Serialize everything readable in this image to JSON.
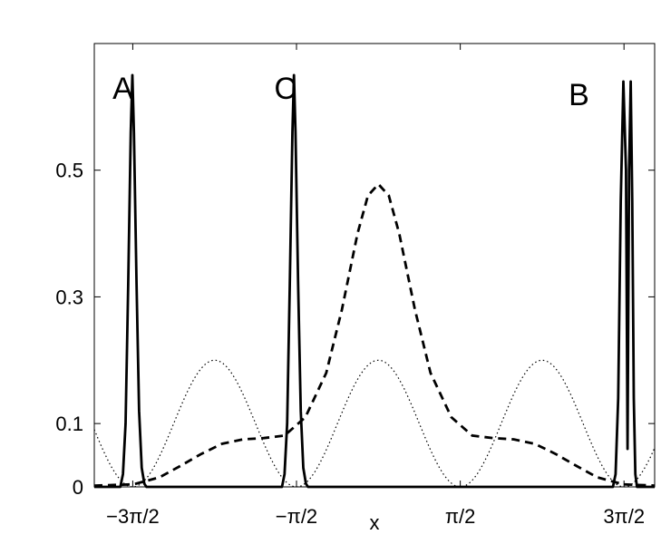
{
  "chart_data": {
    "type": "line",
    "title": "",
    "xlabel": "x",
    "ylabel": "",
    "xlim": [
      -5.45,
      5.3
    ],
    "ylim": [
      0,
      0.7
    ],
    "grid": false,
    "legend": "none",
    "x_ticks": [
      {
        "value": -4.712,
        "label": "−3π/2"
      },
      {
        "value": -1.571,
        "label": "−π/2"
      },
      {
        "value": 1.571,
        "label": "π/2"
      },
      {
        "value": 4.712,
        "label": "3π/2"
      }
    ],
    "y_ticks": [
      {
        "value": 0,
        "label": "0"
      },
      {
        "value": 0.1,
        "label": "0.1"
      },
      {
        "value": 0.3,
        "label": "0.3"
      },
      {
        "value": 0.5,
        "label": "0.5"
      }
    ],
    "annotations": [
      {
        "text": "A",
        "x": -5.1,
        "y": 0.63
      },
      {
        "text": "C",
        "x": -2.0,
        "y": 0.63
      },
      {
        "text": "B",
        "x": 3.65,
        "y": 0.62
      }
    ],
    "series": [
      {
        "style": "solid",
        "color": "#000000",
        "x": [
          -5.45,
          -4.95,
          -4.9,
          -4.85,
          -4.8,
          -4.75,
          -4.72,
          -4.69,
          -4.64,
          -4.59,
          -4.54,
          -4.49,
          -4.45,
          -1.85,
          -1.8,
          -1.75,
          -1.7,
          -1.65,
          -1.62,
          -1.59,
          -1.54,
          -1.49,
          -1.44,
          -1.39,
          -1.35,
          4.5,
          4.55,
          4.6,
          4.65,
          4.7,
          4.75,
          4.78,
          4.81,
          4.84,
          4.87,
          4.9,
          4.93,
          4.96,
          5.0,
          5.05,
          5.1,
          5.15,
          5.3
        ],
        "y": [
          0,
          0,
          0.02,
          0.1,
          0.32,
          0.56,
          0.65,
          0.56,
          0.32,
          0.12,
          0.03,
          0.005,
          0,
          0,
          0.02,
          0.1,
          0.32,
          0.56,
          0.65,
          0.56,
          0.32,
          0.12,
          0.03,
          0.005,
          0,
          0,
          0.02,
          0.14,
          0.45,
          0.64,
          0.5,
          0.06,
          0.5,
          0.64,
          0.45,
          0.14,
          0.02,
          0,
          0,
          0,
          0,
          0,
          0
        ]
      },
      {
        "style": "dashed",
        "color": "#000000",
        "x": [
          -5.45,
          -4.7,
          -4.2,
          -3.8,
          -3.4,
          -3.0,
          -2.6,
          -2.2,
          -1.8,
          -1.4,
          -1.0,
          -0.7,
          -0.4,
          -0.2,
          0.0,
          0.2,
          0.4,
          0.7,
          1.0,
          1.4,
          1.8,
          2.2,
          2.6,
          3.0,
          3.4,
          3.8,
          4.2,
          4.7,
          5.3
        ],
        "y": [
          0.002,
          0.004,
          0.015,
          0.033,
          0.052,
          0.068,
          0.075,
          0.077,
          0.081,
          0.11,
          0.18,
          0.28,
          0.4,
          0.46,
          0.478,
          0.46,
          0.4,
          0.28,
          0.18,
          0.11,
          0.081,
          0.077,
          0.075,
          0.068,
          0.052,
          0.033,
          0.015,
          0.004,
          0.002
        ]
      },
      {
        "style": "dotted",
        "color": "#000000",
        "formula": "0.2*cos(x)^2",
        "x_range": [
          -5.45,
          5.3
        ]
      }
    ]
  }
}
